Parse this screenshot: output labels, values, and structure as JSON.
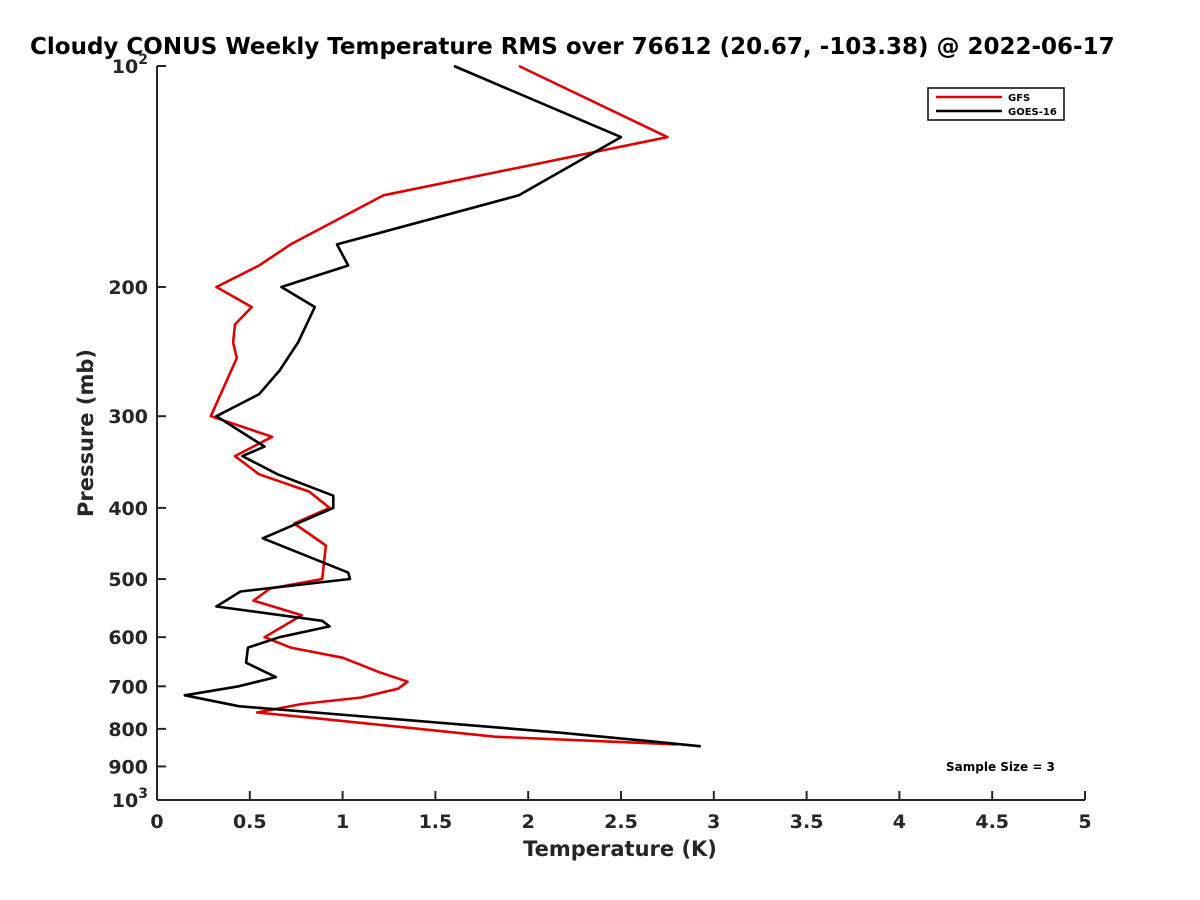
{
  "chart_data": {
    "type": "line",
    "title": "Cloudy CONUS Weekly Temperature RMS over 76612 (20.67, -103.38) @ 2022-06-17",
    "xlabel": "Temperature (K)",
    "ylabel": "Pressure (mb)",
    "xlim": [
      0,
      5
    ],
    "ylim": [
      100,
      1000
    ],
    "yscale": "log",
    "y_reversed": true,
    "xticks": [
      {
        "value": 0,
        "label": "0"
      },
      {
        "value": 0.5,
        "label": "0.5"
      },
      {
        "value": 1,
        "label": "1"
      },
      {
        "value": 1.5,
        "label": "1.5"
      },
      {
        "value": 2,
        "label": "2"
      },
      {
        "value": 2.5,
        "label": "2.5"
      },
      {
        "value": 3,
        "label": "3"
      },
      {
        "value": 3.5,
        "label": "3.5"
      },
      {
        "value": 4,
        "label": "4"
      },
      {
        "value": 4.5,
        "label": "4.5"
      },
      {
        "value": 5,
        "label": "5"
      }
    ],
    "yticks": [
      {
        "value": 100,
        "label": "10",
        "sup": "2"
      },
      {
        "value": 200,
        "label": "200"
      },
      {
        "value": 300,
        "label": "300"
      },
      {
        "value": 400,
        "label": "400"
      },
      {
        "value": 500,
        "label": "500"
      },
      {
        "value": 600,
        "label": "600"
      },
      {
        "value": 700,
        "label": "700"
      },
      {
        "value": 800,
        "label": "800"
      },
      {
        "value": 900,
        "label": "900"
      },
      {
        "value": 1000,
        "label": "10",
        "sup": "3"
      }
    ],
    "legend": {
      "location": "top-right"
    },
    "annotation": "Sample Size = 3",
    "series": [
      {
        "name": "GFS",
        "color": "#e00000",
        "points": [
          [
            1.95,
            100
          ],
          [
            2.75,
            125
          ],
          [
            1.22,
            150
          ],
          [
            0.72,
            175
          ],
          [
            0.55,
            187
          ],
          [
            0.32,
            200
          ],
          [
            0.51,
            213
          ],
          [
            0.42,
            225
          ],
          [
            0.41,
            238
          ],
          [
            0.43,
            250
          ],
          [
            0.29,
            300
          ],
          [
            0.62,
            320
          ],
          [
            0.42,
            340
          ],
          [
            0.55,
            360
          ],
          [
            0.82,
            380
          ],
          [
            0.93,
            400
          ],
          [
            0.74,
            420
          ],
          [
            0.91,
            450
          ],
          [
            0.89,
            500
          ],
          [
            0.61,
            515
          ],
          [
            0.52,
            535
          ],
          [
            0.78,
            560
          ],
          [
            0.58,
            600
          ],
          [
            0.72,
            620
          ],
          [
            1.0,
            640
          ],
          [
            1.2,
            670
          ],
          [
            1.35,
            690
          ],
          [
            1.3,
            705
          ],
          [
            1.1,
            725
          ],
          [
            0.78,
            740
          ],
          [
            0.54,
            760
          ],
          [
            0.88,
            775
          ],
          [
            1.82,
            820
          ],
          [
            2.8,
            840
          ]
        ]
      },
      {
        "name": "GOES-16",
        "color": "#000000",
        "points": [
          [
            1.6,
            100
          ],
          [
            2.5,
            125
          ],
          [
            1.95,
            150
          ],
          [
            0.97,
            175
          ],
          [
            1.03,
            187
          ],
          [
            0.67,
            200
          ],
          [
            0.85,
            213
          ],
          [
            0.76,
            238
          ],
          [
            0.66,
            260
          ],
          [
            0.55,
            280
          ],
          [
            0.32,
            300
          ],
          [
            0.58,
            330
          ],
          [
            0.46,
            340
          ],
          [
            0.65,
            360
          ],
          [
            0.95,
            385
          ],
          [
            0.95,
            400
          ],
          [
            0.57,
            440
          ],
          [
            1.03,
            490
          ],
          [
            1.04,
            500
          ],
          [
            0.45,
            520
          ],
          [
            0.32,
            545
          ],
          [
            0.89,
            570
          ],
          [
            0.93,
            580
          ],
          [
            0.66,
            600
          ],
          [
            0.49,
            620
          ],
          [
            0.48,
            650
          ],
          [
            0.64,
            680
          ],
          [
            0.44,
            700
          ],
          [
            0.15,
            720
          ],
          [
            0.44,
            745
          ],
          [
            2.18,
            810
          ],
          [
            2.62,
            830
          ],
          [
            2.93,
            845
          ]
        ]
      }
    ]
  }
}
